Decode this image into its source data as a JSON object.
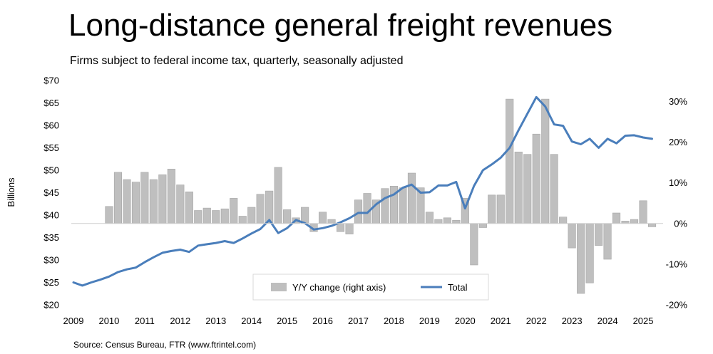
{
  "title": "Long-distance general freight revenues",
  "subtitle": "Firms subject to federal income tax, quarterly, seasonally adjusted",
  "source": "Source: Census Bureau, FTR (www.ftrintel.com)",
  "colors": {
    "bars": "#bfbfbf",
    "line": "#4a7ebb"
  },
  "chart_data": {
    "type": "bar+line",
    "xlabel": "",
    "ylabel": "Billions",
    "x_ticks": [
      "2009",
      "2010",
      "2011",
      "2012",
      "2013",
      "2014",
      "2015",
      "2016",
      "2017",
      "2018",
      "2019",
      "2020",
      "2021",
      "2022",
      "2023",
      "2024",
      "2025"
    ],
    "x_range": [
      2009.0,
      2025.5
    ],
    "y_left": {
      "range": [
        20,
        70
      ],
      "ticks": [
        "$20",
        "$25",
        "$30",
        "$35",
        "$40",
        "$45",
        "$50",
        "$55",
        "$60",
        "$65",
        "$70"
      ]
    },
    "y_right": {
      "range": [
        -20,
        33
      ],
      "ticks": [
        "-20%",
        "-10%",
        "0%",
        "10%",
        "20%",
        "30%"
      ],
      "tick_values": [
        -20,
        -10,
        0,
        10,
        20,
        30
      ]
    },
    "legend": [
      "Y/Y change (right axis)",
      "Total"
    ],
    "legend_position": "bottom-center",
    "series": [
      {
        "name": "Total",
        "type": "line",
        "axis": "left",
        "x": [
          2009.0,
          2009.25,
          2009.5,
          2009.75,
          2010.0,
          2010.25,
          2010.5,
          2010.75,
          2011.0,
          2011.25,
          2011.5,
          2011.75,
          2012.0,
          2012.25,
          2012.5,
          2012.75,
          2013.0,
          2013.25,
          2013.5,
          2013.75,
          2014.0,
          2014.25,
          2014.5,
          2014.75,
          2015.0,
          2015.25,
          2015.5,
          2015.75,
          2016.0,
          2016.25,
          2016.5,
          2016.75,
          2017.0,
          2017.25,
          2017.5,
          2017.75,
          2018.0,
          2018.25,
          2018.5,
          2018.75,
          2019.0,
          2019.25,
          2019.5,
          2019.75,
          2020.0,
          2020.25,
          2020.5,
          2020.75,
          2021.0,
          2021.25,
          2021.5,
          2021.75,
          2022.0,
          2022.25,
          2022.5,
          2022.75,
          2023.0,
          2023.25,
          2023.5,
          2023.75,
          2024.0,
          2024.25,
          2024.5,
          2024.75,
          2025.0,
          2025.25
        ],
        "values": [
          25.0,
          24.3,
          25.0,
          25.6,
          26.3,
          27.3,
          27.9,
          28.3,
          29.5,
          30.6,
          31.6,
          32.0,
          32.3,
          31.8,
          33.2,
          33.5,
          33.8,
          34.2,
          33.8,
          34.8,
          35.9,
          36.9,
          38.9,
          36.0,
          37.1,
          38.9,
          38.2,
          36.8,
          37.1,
          37.6,
          38.4,
          39.3,
          40.5,
          40.5,
          42.4,
          43.8,
          44.6,
          46.1,
          46.8,
          45.0,
          45.1,
          46.6,
          46.6,
          47.4,
          41.5,
          46.5,
          50.0,
          51.3,
          52.8,
          55.0,
          58.9,
          62.6,
          66.3,
          64.2,
          60.2,
          59.9,
          56.4,
          55.8,
          57.0,
          55.0,
          57.0,
          56.0,
          57.7,
          57.8,
          57.3,
          57.0
        ]
      },
      {
        "name": "Y/Y change (right axis)",
        "type": "bar",
        "axis": "right",
        "x": [
          2010.0,
          2010.25,
          2010.5,
          2010.75,
          2011.0,
          2011.25,
          2011.5,
          2011.75,
          2012.0,
          2012.25,
          2012.5,
          2012.75,
          2013.0,
          2013.25,
          2013.5,
          2013.75,
          2014.0,
          2014.25,
          2014.5,
          2014.75,
          2015.0,
          2015.25,
          2015.5,
          2015.75,
          2016.0,
          2016.25,
          2016.5,
          2016.75,
          2017.0,
          2017.25,
          2017.5,
          2017.75,
          2018.0,
          2018.25,
          2018.5,
          2018.75,
          2019.0,
          2019.25,
          2019.5,
          2019.75,
          2020.0,
          2020.25,
          2020.5,
          2020.75,
          2021.0,
          2021.25,
          2021.5,
          2021.75,
          2022.0,
          2022.25,
          2022.5,
          2022.75,
          2023.0,
          2023.25,
          2023.5,
          2023.75,
          2024.0,
          2024.25,
          2024.5,
          2024.75,
          2025.0,
          2025.25
        ],
        "values": [
          4.2,
          12.6,
          10.8,
          10.2,
          12.6,
          10.8,
          12.0,
          13.4,
          9.5,
          7.8,
          3.2,
          3.8,
          3.2,
          3.6,
          6.2,
          1.8,
          4.0,
          7.2,
          8.0,
          13.8,
          3.4,
          1.4,
          4.0,
          -2.0,
          2.8,
          1.0,
          -2.0,
          -2.6,
          5.8,
          7.4,
          5.8,
          8.6,
          9.2,
          8.8,
          12.4,
          8.8,
          2.8,
          1.0,
          1.4,
          0.8,
          6.2,
          -10.2,
          -1.0,
          7.0,
          7.0,
          30.6,
          17.6,
          17.0,
          22.0,
          30.6,
          17.0,
          1.6,
          -6.0,
          -17.2,
          -14.6,
          -5.4,
          -8.8,
          2.6,
          0.6,
          1.0,
          5.6,
          -0.8
        ]
      }
    ]
  }
}
